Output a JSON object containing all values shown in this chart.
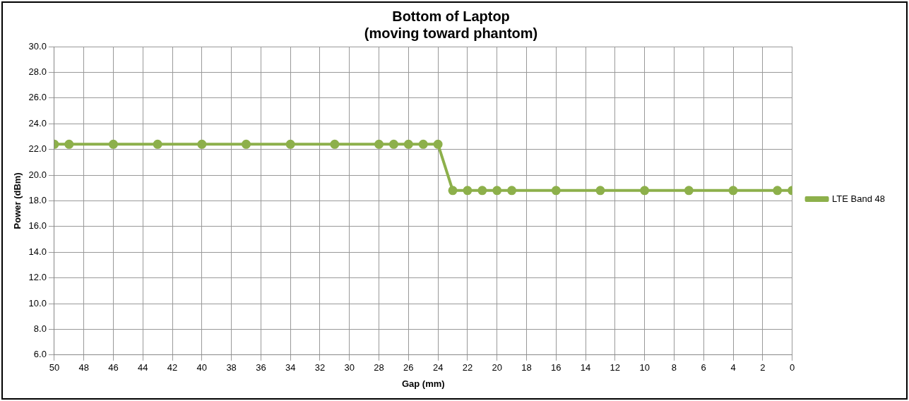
{
  "chart_data": {
    "type": "line",
    "title": "Bottom of Laptop\n(moving toward phantom)",
    "xlabel": "Gap (mm)",
    "ylabel": "Power (dBm)",
    "x": [
      50,
      49,
      46,
      43,
      40,
      37,
      34,
      31,
      28,
      27,
      26,
      25,
      24,
      23,
      22,
      21,
      20,
      19,
      16,
      13,
      10,
      7,
      4,
      1,
      0
    ],
    "series": [
      {
        "name": "LTE Band 48",
        "color": "#8db04b",
        "values": [
          22.4,
          22.4,
          22.4,
          22.4,
          22.4,
          22.4,
          22.4,
          22.4,
          22.4,
          22.4,
          22.4,
          22.4,
          22.4,
          18.8,
          18.8,
          18.8,
          18.8,
          18.8,
          18.8,
          18.8,
          18.8,
          18.8,
          18.8,
          18.8,
          18.8
        ]
      }
    ],
    "xlim": [
      50,
      0
    ],
    "xticks": [
      50,
      48,
      46,
      44,
      42,
      40,
      38,
      36,
      34,
      32,
      30,
      28,
      26,
      24,
      22,
      20,
      18,
      16,
      14,
      12,
      10,
      8,
      6,
      4,
      2,
      0
    ],
    "ylim": [
      6,
      30
    ],
    "yticks": [
      {
        "value": 6,
        "label": "6.0"
      },
      {
        "value": 8,
        "label": "8.0"
      },
      {
        "value": 10,
        "label": "10.0"
      },
      {
        "value": 12,
        "label": "12.0"
      },
      {
        "value": 14,
        "label": "14.0"
      },
      {
        "value": 16,
        "label": "16.0"
      },
      {
        "value": 18,
        "label": "18.0"
      },
      {
        "value": 20,
        "label": "20.0"
      },
      {
        "value": 22,
        "label": "22.0"
      },
      {
        "value": 24,
        "label": "24.0"
      },
      {
        "value": 26,
        "label": "26.0"
      },
      {
        "value": 28,
        "label": "28.0"
      },
      {
        "value": 30,
        "label": "30.0"
      }
    ],
    "grid": true,
    "legend": "right",
    "marker": "circle",
    "line_style": "solid"
  }
}
